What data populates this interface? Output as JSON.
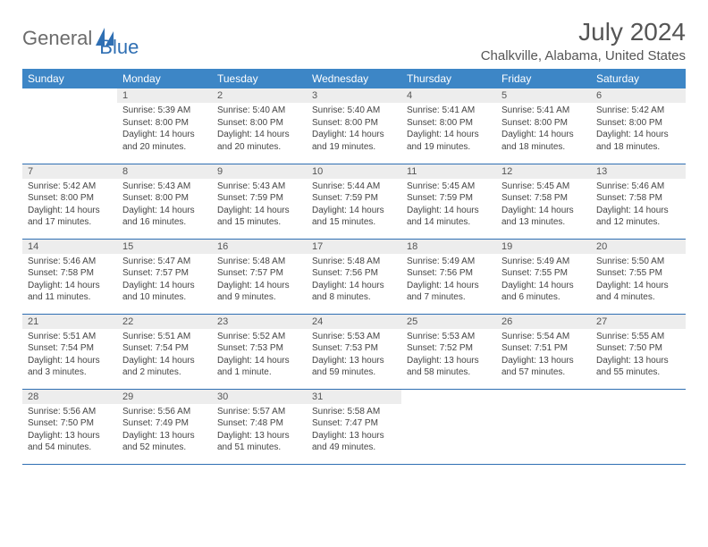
{
  "logo": {
    "general": "General",
    "blue": "Blue"
  },
  "title": "July 2024",
  "location": "Chalkville, Alabama, United States",
  "colors": {
    "header_bg": "#3d86c6",
    "header_fg": "#ffffff",
    "daynum_bg": "#ededed",
    "border": "#2f6fb3",
    "text": "#444444"
  },
  "weekdays": [
    "Sunday",
    "Monday",
    "Tuesday",
    "Wednesday",
    "Thursday",
    "Friday",
    "Saturday"
  ],
  "weeks": [
    [
      {
        "n": "",
        "sr": "",
        "ss": "",
        "dl": ""
      },
      {
        "n": "1",
        "sr": "Sunrise: 5:39 AM",
        "ss": "Sunset: 8:00 PM",
        "dl": "Daylight: 14 hours and 20 minutes."
      },
      {
        "n": "2",
        "sr": "Sunrise: 5:40 AM",
        "ss": "Sunset: 8:00 PM",
        "dl": "Daylight: 14 hours and 20 minutes."
      },
      {
        "n": "3",
        "sr": "Sunrise: 5:40 AM",
        "ss": "Sunset: 8:00 PM",
        "dl": "Daylight: 14 hours and 19 minutes."
      },
      {
        "n": "4",
        "sr": "Sunrise: 5:41 AM",
        "ss": "Sunset: 8:00 PM",
        "dl": "Daylight: 14 hours and 19 minutes."
      },
      {
        "n": "5",
        "sr": "Sunrise: 5:41 AM",
        "ss": "Sunset: 8:00 PM",
        "dl": "Daylight: 14 hours and 18 minutes."
      },
      {
        "n": "6",
        "sr": "Sunrise: 5:42 AM",
        "ss": "Sunset: 8:00 PM",
        "dl": "Daylight: 14 hours and 18 minutes."
      }
    ],
    [
      {
        "n": "7",
        "sr": "Sunrise: 5:42 AM",
        "ss": "Sunset: 8:00 PM",
        "dl": "Daylight: 14 hours and 17 minutes."
      },
      {
        "n": "8",
        "sr": "Sunrise: 5:43 AM",
        "ss": "Sunset: 8:00 PM",
        "dl": "Daylight: 14 hours and 16 minutes."
      },
      {
        "n": "9",
        "sr": "Sunrise: 5:43 AM",
        "ss": "Sunset: 7:59 PM",
        "dl": "Daylight: 14 hours and 15 minutes."
      },
      {
        "n": "10",
        "sr": "Sunrise: 5:44 AM",
        "ss": "Sunset: 7:59 PM",
        "dl": "Daylight: 14 hours and 15 minutes."
      },
      {
        "n": "11",
        "sr": "Sunrise: 5:45 AM",
        "ss": "Sunset: 7:59 PM",
        "dl": "Daylight: 14 hours and 14 minutes."
      },
      {
        "n": "12",
        "sr": "Sunrise: 5:45 AM",
        "ss": "Sunset: 7:58 PM",
        "dl": "Daylight: 14 hours and 13 minutes."
      },
      {
        "n": "13",
        "sr": "Sunrise: 5:46 AM",
        "ss": "Sunset: 7:58 PM",
        "dl": "Daylight: 14 hours and 12 minutes."
      }
    ],
    [
      {
        "n": "14",
        "sr": "Sunrise: 5:46 AM",
        "ss": "Sunset: 7:58 PM",
        "dl": "Daylight: 14 hours and 11 minutes."
      },
      {
        "n": "15",
        "sr": "Sunrise: 5:47 AM",
        "ss": "Sunset: 7:57 PM",
        "dl": "Daylight: 14 hours and 10 minutes."
      },
      {
        "n": "16",
        "sr": "Sunrise: 5:48 AM",
        "ss": "Sunset: 7:57 PM",
        "dl": "Daylight: 14 hours and 9 minutes."
      },
      {
        "n": "17",
        "sr": "Sunrise: 5:48 AM",
        "ss": "Sunset: 7:56 PM",
        "dl": "Daylight: 14 hours and 8 minutes."
      },
      {
        "n": "18",
        "sr": "Sunrise: 5:49 AM",
        "ss": "Sunset: 7:56 PM",
        "dl": "Daylight: 14 hours and 7 minutes."
      },
      {
        "n": "19",
        "sr": "Sunrise: 5:49 AM",
        "ss": "Sunset: 7:55 PM",
        "dl": "Daylight: 14 hours and 6 minutes."
      },
      {
        "n": "20",
        "sr": "Sunrise: 5:50 AM",
        "ss": "Sunset: 7:55 PM",
        "dl": "Daylight: 14 hours and 4 minutes."
      }
    ],
    [
      {
        "n": "21",
        "sr": "Sunrise: 5:51 AM",
        "ss": "Sunset: 7:54 PM",
        "dl": "Daylight: 14 hours and 3 minutes."
      },
      {
        "n": "22",
        "sr": "Sunrise: 5:51 AM",
        "ss": "Sunset: 7:54 PM",
        "dl": "Daylight: 14 hours and 2 minutes."
      },
      {
        "n": "23",
        "sr": "Sunrise: 5:52 AM",
        "ss": "Sunset: 7:53 PM",
        "dl": "Daylight: 14 hours and 1 minute."
      },
      {
        "n": "24",
        "sr": "Sunrise: 5:53 AM",
        "ss": "Sunset: 7:53 PM",
        "dl": "Daylight: 13 hours and 59 minutes."
      },
      {
        "n": "25",
        "sr": "Sunrise: 5:53 AM",
        "ss": "Sunset: 7:52 PM",
        "dl": "Daylight: 13 hours and 58 minutes."
      },
      {
        "n": "26",
        "sr": "Sunrise: 5:54 AM",
        "ss": "Sunset: 7:51 PM",
        "dl": "Daylight: 13 hours and 57 minutes."
      },
      {
        "n": "27",
        "sr": "Sunrise: 5:55 AM",
        "ss": "Sunset: 7:50 PM",
        "dl": "Daylight: 13 hours and 55 minutes."
      }
    ],
    [
      {
        "n": "28",
        "sr": "Sunrise: 5:56 AM",
        "ss": "Sunset: 7:50 PM",
        "dl": "Daylight: 13 hours and 54 minutes."
      },
      {
        "n": "29",
        "sr": "Sunrise: 5:56 AM",
        "ss": "Sunset: 7:49 PM",
        "dl": "Daylight: 13 hours and 52 minutes."
      },
      {
        "n": "30",
        "sr": "Sunrise: 5:57 AM",
        "ss": "Sunset: 7:48 PM",
        "dl": "Daylight: 13 hours and 51 minutes."
      },
      {
        "n": "31",
        "sr": "Sunrise: 5:58 AM",
        "ss": "Sunset: 7:47 PM",
        "dl": "Daylight: 13 hours and 49 minutes."
      },
      {
        "n": "",
        "sr": "",
        "ss": "",
        "dl": ""
      },
      {
        "n": "",
        "sr": "",
        "ss": "",
        "dl": ""
      },
      {
        "n": "",
        "sr": "",
        "ss": "",
        "dl": ""
      }
    ]
  ]
}
